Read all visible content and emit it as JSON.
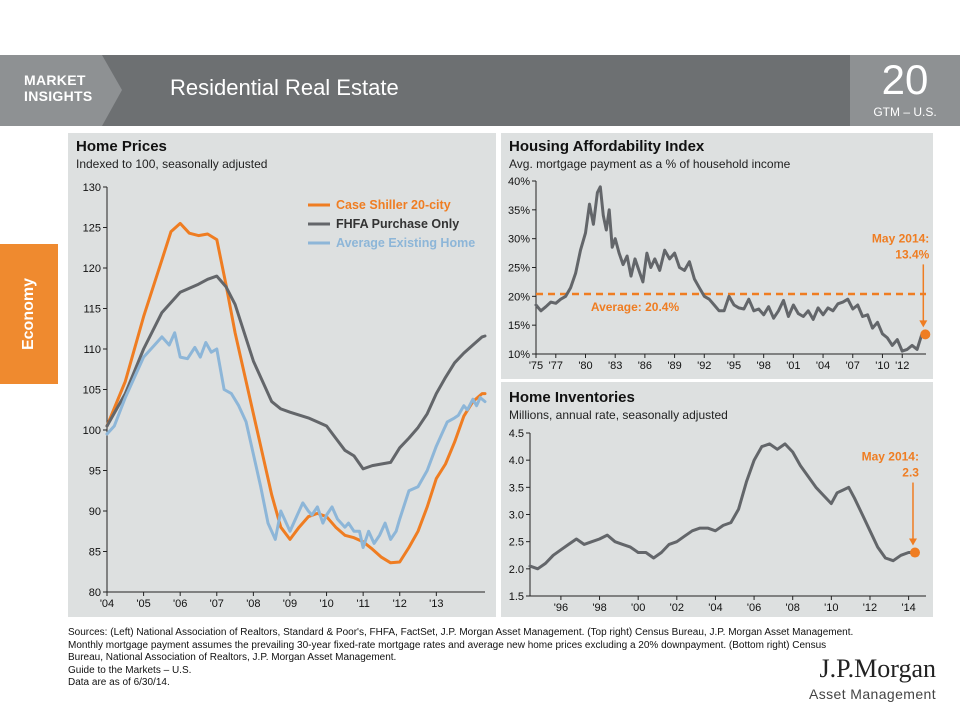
{
  "header": {
    "section_label": "MARKET\nINSIGHTS",
    "title": "Residential Real Estate",
    "page_number": "20",
    "page_sub": "GTM – U.S."
  },
  "side_tab": {
    "label": "Economy"
  },
  "colors": {
    "orange": "#ef7d22",
    "gray": "#63666a",
    "blue": "#8db6d8",
    "header": "#6d7072",
    "panel": "#dde0e0"
  },
  "chart_data": [
    {
      "id": "home-prices",
      "type": "line",
      "title": "Home Prices",
      "subtitle": "Indexed to 100, seasonally adjusted",
      "ylim": [
        80,
        130
      ],
      "yticks": [
        80,
        85,
        90,
        95,
        100,
        105,
        110,
        115,
        120,
        125,
        130
      ],
      "xlim": [
        2004,
        2014.33
      ],
      "xtick_labels": [
        "'04",
        "'05",
        "'06",
        "'07",
        "'08",
        "'09",
        "'10",
        "'11",
        "'12",
        "'13"
      ],
      "series": [
        {
          "name": "Case Shiller 20-city",
          "color": "#ef7d22",
          "x": [
            2004.0,
            2004.5,
            2005.0,
            2005.5,
            2005.75,
            2006.0,
            2006.25,
            2006.5,
            2006.75,
            2007.0,
            2007.25,
            2007.5,
            2008.0,
            2008.5,
            2008.75,
            2009.0,
            2009.25,
            2009.5,
            2009.75,
            2010.0,
            2010.25,
            2010.5,
            2010.75,
            2011.0,
            2011.25,
            2011.5,
            2011.75,
            2012.0,
            2012.25,
            2012.5,
            2012.75,
            2013.0,
            2013.25,
            2013.5,
            2013.75,
            2014.0,
            2014.25,
            2014.33
          ],
          "y": [
            100.5,
            106,
            114,
            121,
            124.5,
            125.5,
            124.3,
            124.0,
            124.2,
            123.5,
            118,
            112,
            102,
            92,
            88,
            86.5,
            88,
            89.3,
            89.7,
            89.3,
            88,
            87,
            86.7,
            86.2,
            85.3,
            84.3,
            83.6,
            83.7,
            85.5,
            87.5,
            90.5,
            94,
            95.8,
            98.5,
            101.7,
            103.5,
            104.5,
            104.5
          ]
        },
        {
          "name": "FHFA Purchase Only",
          "color": "#63666a",
          "x": [
            2004.0,
            2004.5,
            2005.0,
            2005.5,
            2006.0,
            2006.5,
            2006.75,
            2007.0,
            2007.25,
            2007.5,
            2008.0,
            2008.5,
            2008.75,
            2009.0,
            2009.5,
            2009.75,
            2010.0,
            2010.25,
            2010.5,
            2010.75,
            2011.0,
            2011.25,
            2011.5,
            2011.75,
            2012.0,
            2012.25,
            2012.5,
            2012.75,
            2013.0,
            2013.25,
            2013.5,
            2013.75,
            2014.0,
            2014.25,
            2014.33
          ],
          "y": [
            100.5,
            104.5,
            110,
            114.5,
            117,
            118,
            118.6,
            119,
            117.7,
            115.5,
            108.5,
            103.5,
            102.6,
            102.2,
            101.5,
            101,
            100.5,
            99,
            97.5,
            96.8,
            95.2,
            95.6,
            95.8,
            96,
            97.8,
            99,
            100.3,
            102,
            104.5,
            106.5,
            108.3,
            109.5,
            110.5,
            111.5,
            111.6
          ]
        },
        {
          "name": "Average Existing Home",
          "color": "#8db6d8",
          "x": [
            2004.0,
            2004.2,
            2004.5,
            2004.8,
            2005.0,
            2005.3,
            2005.5,
            2005.7,
            2005.85,
            2006.0,
            2006.2,
            2006.4,
            2006.55,
            2006.7,
            2006.85,
            2007.0,
            2007.2,
            2007.4,
            2007.6,
            2007.8,
            2008.0,
            2008.2,
            2008.4,
            2008.6,
            2008.75,
            2008.9,
            2009.0,
            2009.2,
            2009.35,
            2009.5,
            2009.6,
            2009.75,
            2009.9,
            2010.0,
            2010.15,
            2010.3,
            2010.5,
            2010.6,
            2010.75,
            2010.9,
            2011.0,
            2011.15,
            2011.3,
            2011.45,
            2011.6,
            2011.75,
            2011.9,
            2012.0,
            2012.25,
            2012.5,
            2012.75,
            2013.0,
            2013.15,
            2013.3,
            2013.5,
            2013.6,
            2013.75,
            2013.85,
            2014.0,
            2014.1,
            2014.2,
            2014.33
          ],
          "y": [
            99.5,
            100.5,
            104,
            107,
            109,
            110.5,
            111.5,
            110.5,
            112,
            109,
            108.8,
            110.2,
            109,
            110.8,
            109.6,
            110,
            105,
            104.5,
            103,
            101,
            97,
            93,
            88.5,
            86.5,
            90,
            88.5,
            87.5,
            89.5,
            91,
            90,
            89.5,
            90.5,
            88.5,
            89.5,
            90.5,
            89,
            88,
            88.5,
            87.5,
            87.5,
            85.5,
            87.5,
            86,
            87,
            88.5,
            86.5,
            87.5,
            89,
            92.5,
            93,
            95,
            98,
            99.5,
            101,
            101.5,
            101.8,
            103,
            102.5,
            103.8,
            103,
            104,
            103.5
          ]
        }
      ]
    },
    {
      "id": "housing-affordability",
      "type": "line",
      "title": "Housing Affordability Index",
      "subtitle": "Avg. mortgage payment as a % of household income",
      "ylim": [
        10,
        40
      ],
      "ytick_labels": [
        "10%",
        "15%",
        "20%",
        "25%",
        "30%",
        "35%",
        "40%"
      ],
      "xlim": [
        1975,
        2014.4
      ],
      "xtick_labels": [
        "'75",
        "'77",
        "'80",
        "'83",
        "'86",
        "'89",
        "'92",
        "'95",
        "'98",
        "'01",
        "'04",
        "'07",
        "'10",
        "'12"
      ],
      "series": [
        {
          "name": "",
          "color": "#63666a",
          "x": [
            1975.0,
            1975.5,
            1976.0,
            1976.5,
            1977.0,
            1977.5,
            1978.0,
            1978.5,
            1979.0,
            1979.5,
            1980.0,
            1980.4,
            1980.8,
            1981.2,
            1981.5,
            1981.8,
            1982.1,
            1982.4,
            1982.7,
            1983.0,
            1983.4,
            1983.8,
            1984.2,
            1984.6,
            1985.0,
            1985.4,
            1985.8,
            1986.2,
            1986.6,
            1987.0,
            1987.5,
            1988.0,
            1988.5,
            1989.0,
            1989.5,
            1990.0,
            1990.5,
            1991.0,
            1991.5,
            1992.0,
            1992.5,
            1993.0,
            1993.5,
            1994.0,
            1994.5,
            1995.0,
            1995.5,
            1996.0,
            1996.5,
            1997.0,
            1997.5,
            1998.0,
            1998.5,
            1999.0,
            1999.5,
            2000.0,
            2000.5,
            2001.0,
            2001.5,
            2002.0,
            2002.5,
            2003.0,
            2003.5,
            2004.0,
            2004.5,
            2005.0,
            2005.5,
            2006.0,
            2006.5,
            2007.0,
            2007.5,
            2008.0,
            2008.5,
            2009.0,
            2009.5,
            2010.0,
            2010.5,
            2011.0,
            2011.5,
            2012.0,
            2012.5,
            2013.0,
            2013.5,
            2014.0,
            2014.33
          ],
          "y": [
            18.5,
            17.5,
            18.2,
            19,
            18.8,
            19.5,
            20,
            21.5,
            24,
            28,
            31,
            36,
            32.5,
            38,
            39,
            34,
            31.5,
            35,
            28.5,
            30,
            27.5,
            25.5,
            27,
            23.5,
            26.5,
            24.5,
            22.5,
            27.5,
            25,
            26.5,
            24.5,
            28,
            26.5,
            27.5,
            25,
            24.5,
            26,
            23,
            21.5,
            20,
            19.5,
            18.5,
            17.5,
            17.5,
            20,
            18.5,
            18,
            17.8,
            19.5,
            17.5,
            17.8,
            16.8,
            18.2,
            16.2,
            17.5,
            19.3,
            16.5,
            18.5,
            17,
            16.5,
            17.5,
            16,
            18,
            16.8,
            18,
            17.5,
            18.7,
            19,
            19.5,
            17.8,
            18.5,
            16.5,
            16.8,
            14.5,
            15.5,
            13.5,
            12.8,
            11.5,
            12.5,
            10.5,
            10.8,
            11.5,
            10.8,
            13.5,
            13.4
          ]
        }
      ],
      "average": {
        "value": 20.4,
        "label": "Average: 20.4%"
      },
      "callout": {
        "text": "May 2014:\n13.4%",
        "x": 2014.33,
        "y": 13.4
      }
    },
    {
      "id": "home-inventories",
      "type": "line",
      "title": "Home Inventories",
      "subtitle": "Millions, annual rate, seasonally adjusted",
      "ylim": [
        1.5,
        4.5
      ],
      "ytick_labels": [
        "1.5",
        "2.0",
        "2.5",
        "3.0",
        "3.5",
        "4.0",
        "4.5"
      ],
      "xlim": [
        1994.4,
        2014.9
      ],
      "xtick_labels": [
        "'96",
        "'98",
        "'00",
        "'02",
        "'04",
        "'06",
        "'08",
        "'10",
        "'12",
        "'14"
      ],
      "series": [
        {
          "name": "",
          "color": "#63666a",
          "x": [
            1994.4,
            1994.8,
            1995.2,
            1995.6,
            1996.0,
            1996.4,
            1996.8,
            1997.2,
            1997.6,
            1998.0,
            1998.4,
            1998.8,
            1999.2,
            1999.6,
            2000.0,
            2000.4,
            2000.8,
            2001.2,
            2001.6,
            2002.0,
            2002.4,
            2002.8,
            2003.2,
            2003.6,
            2004.0,
            2004.4,
            2004.8,
            2005.2,
            2005.6,
            2006.0,
            2006.4,
            2006.8,
            2007.2,
            2007.6,
            2008.0,
            2008.4,
            2008.8,
            2009.2,
            2009.6,
            2010.0,
            2010.3,
            2010.6,
            2010.9,
            2011.2,
            2011.6,
            2012.0,
            2012.4,
            2012.8,
            2013.2,
            2013.6,
            2014.0,
            2014.33
          ],
          "y": [
            2.05,
            2.0,
            2.1,
            2.25,
            2.35,
            2.45,
            2.55,
            2.45,
            2.5,
            2.55,
            2.62,
            2.5,
            2.45,
            2.4,
            2.3,
            2.3,
            2.2,
            2.3,
            2.45,
            2.5,
            2.6,
            2.7,
            2.75,
            2.75,
            2.7,
            2.8,
            2.85,
            3.1,
            3.6,
            4.0,
            4.25,
            4.3,
            4.2,
            4.3,
            4.15,
            3.9,
            3.7,
            3.5,
            3.35,
            3.2,
            3.4,
            3.45,
            3.5,
            3.3,
            3.0,
            2.7,
            2.4,
            2.2,
            2.15,
            2.25,
            2.3,
            2.3
          ]
        }
      ],
      "callout": {
        "text": "May 2014:\n2.3",
        "x": 2014.33,
        "y": 2.3
      }
    }
  ],
  "sources": [
    "Sources: (Left) National Association of Realtors, Standard & Poor's, FHFA, FactSet, J.P. Morgan Asset Management. (Top right) Census Bureau, J.P. Morgan Asset Management.",
    "Monthly mortgage payment assumes the prevailing 30-year fixed-rate mortgage rates and  average new home prices excluding a 20% downpayment. (Bottom right)  Census",
    "Bureau, National Association of Realtors, J.P. Morgan Asset Management.",
    "Guide to the Markets – U.S.",
    "Data are as of 6/30/14."
  ],
  "logo": {
    "name": "J.P.Morgan",
    "tagline": "Asset Management"
  }
}
